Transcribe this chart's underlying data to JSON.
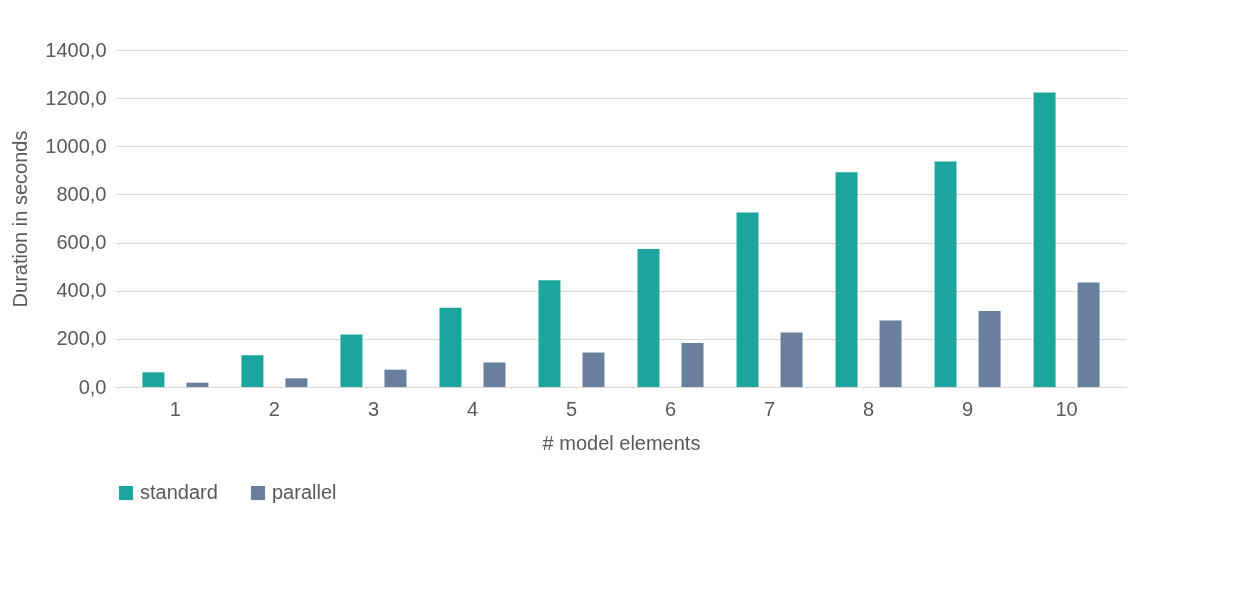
{
  "chart_data": {
    "type": "bar",
    "xlabel": "# model elements",
    "ylabel": "Duration in seconds",
    "categories": [
      "1",
      "2",
      "3",
      "4",
      "5",
      "6",
      "7",
      "8",
      "9",
      "10"
    ],
    "series": [
      {
        "name": "standard",
        "color": "#1ca59c",
        "values": [
          61,
          132,
          218,
          329,
          443,
          573,
          725,
          892,
          937,
          1223
        ]
      },
      {
        "name": "parallel",
        "color": "#687f9e",
        "values": [
          18,
          36,
          72,
          102,
          143,
          183,
          226,
          276,
          316,
          434
        ]
      }
    ],
    "ylim": [
      0,
      1400
    ],
    "yticks": [
      {
        "value": 0,
        "label": "0,0"
      },
      {
        "value": 200,
        "label": "200,0"
      },
      {
        "value": 400,
        "label": "400,0"
      },
      {
        "value": 600,
        "label": "600,0"
      },
      {
        "value": 800,
        "label": "800,0"
      },
      {
        "value": 1000,
        "label": "1000,0"
      },
      {
        "value": 1200,
        "label": "1200,0"
      },
      {
        "value": 1400,
        "label": "1400,0"
      }
    ],
    "grid": "y",
    "legend": "bottom"
  }
}
